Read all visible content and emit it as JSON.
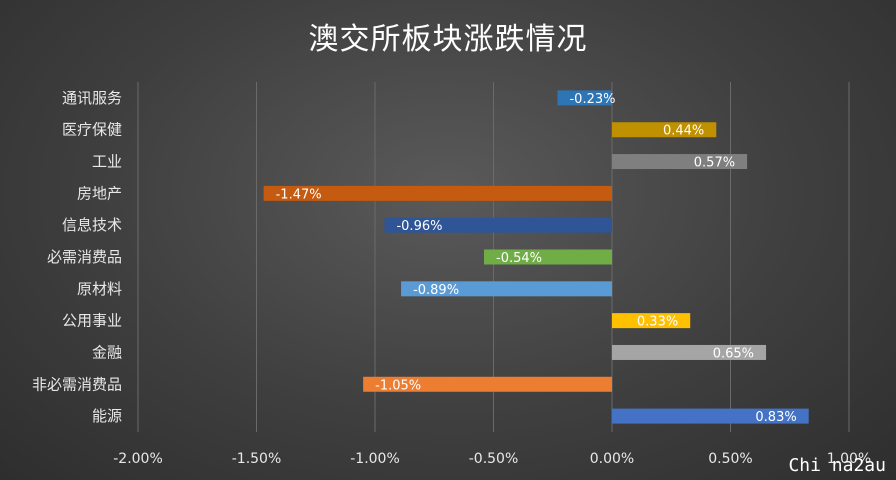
{
  "chart_data": {
    "type": "bar",
    "orientation": "horizontal",
    "title": "澳交所板块涨跌情况",
    "categories": [
      "通讯服务",
      "医疗保健",
      "工业",
      "房地产",
      "信息技术",
      "必需消费品",
      "原材料",
      "公用事业",
      "金融",
      "非必需消费品",
      "能源"
    ],
    "values": [
      -0.23,
      0.44,
      0.57,
      -1.47,
      -0.96,
      -0.54,
      -0.89,
      0.33,
      0.65,
      -1.05,
      0.83
    ],
    "data_labels": [
      "-0.23%",
      "0.44%",
      "0.57%",
      "-1.47%",
      "-0.96%",
      "-0.54%",
      "-0.89%",
      "0.33%",
      "0.65%",
      "-1.05%",
      "0.83%"
    ],
    "colors": [
      "#2e75b6",
      "#bf9000",
      "#7f7f7f",
      "#c55a11",
      "#2f5597",
      "#70ad47",
      "#5b9bd5",
      "#ffc000",
      "#a5a5a5",
      "#ed7d31",
      "#4472c4"
    ],
    "xlim": [
      -2.0,
      1.0
    ],
    "x_ticks": [
      -2.0,
      -1.5,
      -1.0,
      -0.5,
      0.0,
      0.5,
      1.0
    ],
    "x_tick_labels": [
      "-2.00%",
      "-1.50%",
      "-1.00%",
      "-0.50%",
      "0.00%",
      "0.50%",
      "1.00%"
    ],
    "grid": true,
    "legend": "none",
    "xlabel": "",
    "ylabel": ""
  },
  "watermark": "Chi na2au"
}
